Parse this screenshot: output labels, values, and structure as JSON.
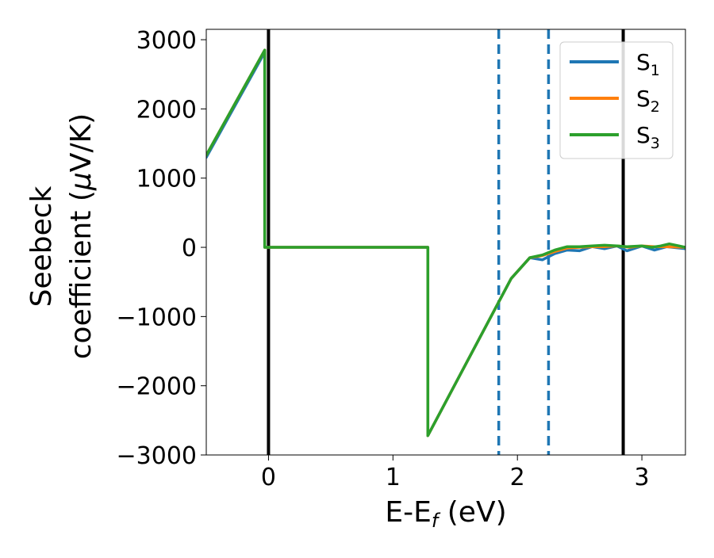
{
  "chart_data": {
    "type": "line",
    "title": "",
    "xlabel": "E-E",
    "xlabel_sub": "f",
    "xlabel_suffix": " (eV)",
    "ylabel_line1": "Seebeck",
    "ylabel_line2": "coefficient  (",
    "ylabel_mu": "μ",
    "ylabel_suffix": "V/K)",
    "xlim": [
      -0.5,
      3.35
    ],
    "ylim": [
      -3000,
      3150
    ],
    "xticks": [
      0,
      1,
      2,
      3
    ],
    "xtick_labels": [
      "0",
      "1",
      "2",
      "3"
    ],
    "yticks": [
      3000,
      2000,
      1000,
      0,
      -1000,
      -2000,
      -3000
    ],
    "ytick_labels": [
      "3000",
      "2000",
      "1000",
      "0",
      "−1000",
      "−2000",
      "−3000"
    ],
    "grid": false,
    "legend_position": "top-right",
    "series": [
      {
        "name": "S",
        "sub": "1",
        "color": "#1f77b4",
        "points": [
          [
            -0.5,
            1300
          ],
          [
            -0.03,
            2820
          ],
          [
            -0.03,
            0
          ],
          [
            1.28,
            0
          ],
          [
            1.28,
            -2720
          ],
          [
            1.95,
            -450
          ],
          [
            2.1,
            -150
          ],
          [
            2.2,
            -180
          ],
          [
            2.3,
            -90
          ],
          [
            2.4,
            -40
          ],
          [
            2.5,
            -50
          ],
          [
            2.6,
            10
          ],
          [
            2.7,
            -20
          ],
          [
            2.8,
            20
          ],
          [
            2.88,
            -50
          ],
          [
            3.0,
            20
          ],
          [
            3.1,
            -40
          ],
          [
            3.2,
            10
          ],
          [
            3.35,
            -20
          ]
        ]
      },
      {
        "name": "S",
        "sub": "2",
        "color": "#ff7f0e",
        "points": [
          [
            -0.5,
            1330
          ],
          [
            -0.03,
            2850
          ],
          [
            -0.03,
            0
          ],
          [
            1.28,
            0
          ],
          [
            1.28,
            -2720
          ],
          [
            1.95,
            -450
          ],
          [
            2.1,
            -150
          ],
          [
            2.2,
            -120
          ],
          [
            2.3,
            -60
          ],
          [
            2.4,
            -10
          ],
          [
            2.5,
            0
          ],
          [
            2.6,
            10
          ],
          [
            2.7,
            10
          ],
          [
            2.8,
            20
          ],
          [
            2.9,
            0
          ],
          [
            3.0,
            20
          ],
          [
            3.1,
            10
          ],
          [
            3.2,
            10
          ],
          [
            3.35,
            0
          ]
        ]
      },
      {
        "name": "S",
        "sub": "3",
        "color": "#2ca02c",
        "points": [
          [
            -0.5,
            1330
          ],
          [
            -0.03,
            2850
          ],
          [
            -0.03,
            0
          ],
          [
            1.28,
            0
          ],
          [
            1.28,
            -2720
          ],
          [
            1.95,
            -450
          ],
          [
            2.1,
            -150
          ],
          [
            2.2,
            -110
          ],
          [
            2.3,
            -40
          ],
          [
            2.4,
            10
          ],
          [
            2.5,
            10
          ],
          [
            2.6,
            20
          ],
          [
            2.7,
            30
          ],
          [
            2.8,
            20
          ],
          [
            2.88,
            10
          ],
          [
            3.0,
            20
          ],
          [
            3.08,
            0
          ],
          [
            3.15,
            20
          ],
          [
            3.22,
            50
          ],
          [
            3.3,
            20
          ],
          [
            3.35,
            0
          ]
        ]
      }
    ],
    "vertical_lines": [
      {
        "x": 0.0,
        "style": "solid",
        "color": "#000000"
      },
      {
        "x": 2.85,
        "style": "solid",
        "color": "#000000"
      },
      {
        "x": 1.85,
        "style": "dashed",
        "color": "#1f77b4"
      },
      {
        "x": 2.25,
        "style": "dashed",
        "color": "#1f77b4"
      }
    ]
  }
}
